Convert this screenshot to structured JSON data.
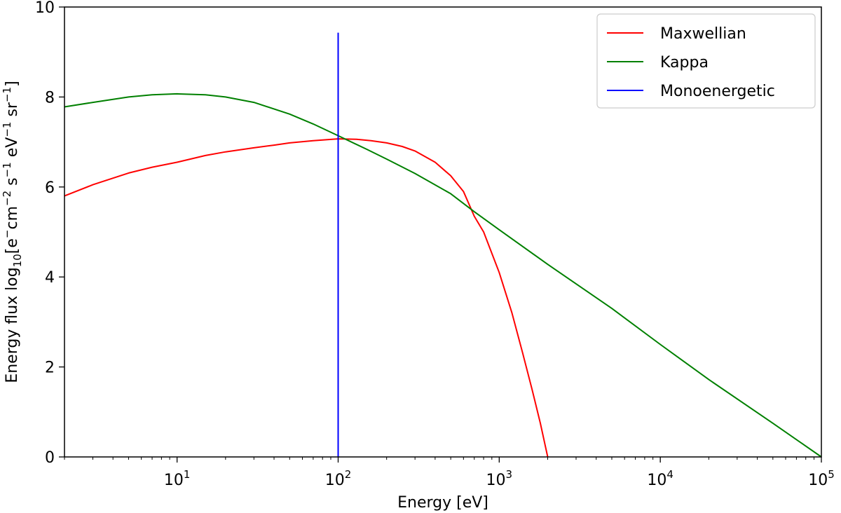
{
  "chart_data": {
    "type": "line",
    "title": "",
    "xlabel": "Energy [eV]",
    "ylabel": {
      "prefix": "Energy flux log",
      "sub": "10",
      "units": "[e",
      "e_sup": "−",
      "cm": "cm",
      "cm_sup": "−2",
      "s": " s",
      "s_sup": "−1",
      "ev": " eV",
      "ev_sup": "−1",
      "sr": " sr",
      "sr_sup": "−1",
      "close": "]"
    },
    "xscale": "log",
    "xlim": [
      2,
      100000
    ],
    "ylim": [
      0,
      10
    ],
    "x_ticks": [
      {
        "value": 10,
        "base": "10",
        "exp": "1"
      },
      {
        "value": 100,
        "base": "10",
        "exp": "2"
      },
      {
        "value": 1000,
        "base": "10",
        "exp": "3"
      },
      {
        "value": 10000,
        "base": "10",
        "exp": "4"
      },
      {
        "value": 100000,
        "base": "10",
        "exp": "5"
      }
    ],
    "y_ticks": [
      {
        "value": 0,
        "label": "0"
      },
      {
        "value": 2,
        "label": "2"
      },
      {
        "value": 4,
        "label": "4"
      },
      {
        "value": 6,
        "label": "6"
      },
      {
        "value": 8,
        "label": "8"
      },
      {
        "value": 10,
        "label": "10"
      }
    ],
    "legend_position": "top-right",
    "series": [
      {
        "name": "Maxwellian",
        "color": "#ff0000",
        "x": [
          2,
          3,
          5,
          7,
          10,
          15,
          20,
          30,
          40,
          50,
          70,
          100,
          130,
          160,
          200,
          250,
          300,
          400,
          500,
          600,
          700,
          800,
          1000,
          1200,
          1400,
          1600,
          1800,
          2000
        ],
        "y": [
          5.8,
          6.05,
          6.31,
          6.44,
          6.55,
          6.7,
          6.78,
          6.87,
          6.93,
          6.98,
          7.03,
          7.07,
          7.06,
          7.03,
          6.98,
          6.9,
          6.8,
          6.55,
          6.25,
          5.9,
          5.35,
          5.0,
          4.1,
          3.2,
          2.3,
          1.5,
          0.75,
          0.0
        ]
      },
      {
        "name": "Kappa",
        "color": "#008000",
        "x": [
          2,
          3,
          5,
          7,
          10,
          15,
          20,
          30,
          50,
          70,
          100,
          150,
          200,
          300,
          500,
          700,
          1000,
          2000,
          5000,
          10000,
          20000,
          50000,
          100000
        ],
        "y": [
          7.78,
          7.88,
          8.0,
          8.05,
          8.07,
          8.05,
          8.0,
          7.88,
          7.62,
          7.4,
          7.14,
          6.84,
          6.62,
          6.3,
          5.85,
          5.45,
          5.05,
          4.28,
          3.3,
          2.5,
          1.72,
          0.75,
          0.0
        ]
      },
      {
        "name": "Monoenergetic",
        "color": "#0000ff",
        "x": [
          100,
          100
        ],
        "y": [
          0,
          9.43
        ]
      }
    ]
  }
}
